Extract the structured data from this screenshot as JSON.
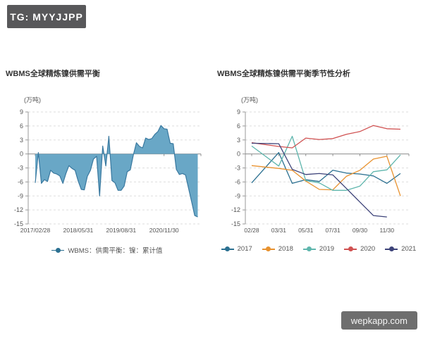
{
  "badge": {
    "label": "TG: MYYJJPP"
  },
  "watermark": {
    "label": "wepkapp.com"
  },
  "theme": {
    "badge_bg": "#58585a",
    "watermark_bg": "#6e6e6e",
    "grid_color": "#dddddd",
    "zero_line_color": "#8c8c8c",
    "axis_color": "#999999",
    "tick_label_color": "#555555",
    "title_color": "#333333",
    "area_fill": "#69a7c6",
    "area_stroke": "#39789f"
  },
  "chart_data": [
    {
      "type": "area",
      "title": "WBMS全球精炼镍供需平衡",
      "unit": "(万吨)",
      "ylim": [
        -15,
        9
      ],
      "yticks": [
        9,
        6,
        3,
        0,
        -3,
        -6,
        -9,
        -12,
        -15
      ],
      "grid": "dashed-horizontal",
      "legend_position": "bottom",
      "legend": [
        {
          "label": "WBMS：供需平衡：镍：累计值",
          "color": "#2b7091"
        }
      ],
      "x_labels": [
        "2017/02/28",
        "2018/05/31",
        "2019/08/31",
        "2020/11/30"
      ],
      "x_label_point_index": [
        0,
        14,
        28,
        42
      ],
      "values": [
        -6.2,
        0.3,
        -6.3,
        -5.5,
        -5.9,
        -3.5,
        -4.1,
        -4.3,
        -4.7,
        -6.3,
        -4.2,
        -2.5,
        -3.1,
        -3.5,
        -5.8,
        -7.6,
        -7.7,
        -4.8,
        -3.5,
        -1.1,
        -0.5,
        -9.0,
        1.7,
        -2.6,
        3.8,
        -5.7,
        -6.2,
        -7.8,
        -7.8,
        -6.9,
        -3.8,
        -3.4,
        -0.2,
        2.4,
        1.6,
        1.3,
        3.4,
        3.1,
        3.3,
        4.2,
        4.8,
        6.1,
        5.4,
        5.3,
        2.3,
        2.2,
        -3.3,
        -4.4,
        -4.2,
        -4.5,
        -7.4,
        -10.3,
        -13.2,
        -13.5
      ]
    },
    {
      "type": "line",
      "title": "WBMS全球精炼镍供需平衡季节性分析",
      "unit": "(万吨)",
      "ylim": [
        -15,
        9
      ],
      "yticks": [
        9,
        6,
        3,
        0,
        -3,
        -6,
        -9,
        -12,
        -15
      ],
      "grid": "dashed-horizontal",
      "legend_position": "bottom",
      "x_points": [
        "02/28",
        "03/31",
        "04/30",
        "05/31",
        "06/30",
        "07/31",
        "08/31",
        "09/30",
        "10/31",
        "11/30",
        "12/31"
      ],
      "x_labels": [
        "02/28",
        "03/31",
        "05/31",
        "07/31",
        "09/30",
        "11/30"
      ],
      "x_label_point_index": [
        0,
        1,
        3,
        5,
        7,
        9
      ],
      "series": [
        {
          "name": "2017",
          "color": "#2b7091",
          "values": [
            -6.2,
            0.3,
            -6.3,
            -5.5,
            -5.9,
            -3.5,
            -4.1,
            -4.3,
            -4.7,
            -6.3,
            -4.2
          ]
        },
        {
          "name": "2018",
          "color": "#e8922f",
          "values": [
            -2.5,
            -3.1,
            -3.5,
            -5.8,
            -7.6,
            -7.7,
            -4.8,
            -3.5,
            -1.1,
            -0.5,
            -9.0
          ]
        },
        {
          "name": "2019",
          "color": "#5fb6ad",
          "values": [
            1.7,
            -2.6,
            3.8,
            -5.7,
            -6.2,
            -7.8,
            -7.8,
            -6.9,
            -3.8,
            -3.4,
            -0.2
          ]
        },
        {
          "name": "2020",
          "color": "#d05151",
          "values": [
            2.4,
            1.6,
            1.3,
            3.4,
            3.1,
            3.3,
            4.2,
            4.8,
            6.1,
            5.4,
            5.3
          ]
        },
        {
          "name": "2021",
          "color": "#3d4379",
          "values": [
            2.3,
            2.2,
            -3.3,
            -4.4,
            -4.2,
            -4.5,
            -7.4,
            -10.3,
            -13.2,
            -13.5
          ]
        }
      ]
    }
  ]
}
